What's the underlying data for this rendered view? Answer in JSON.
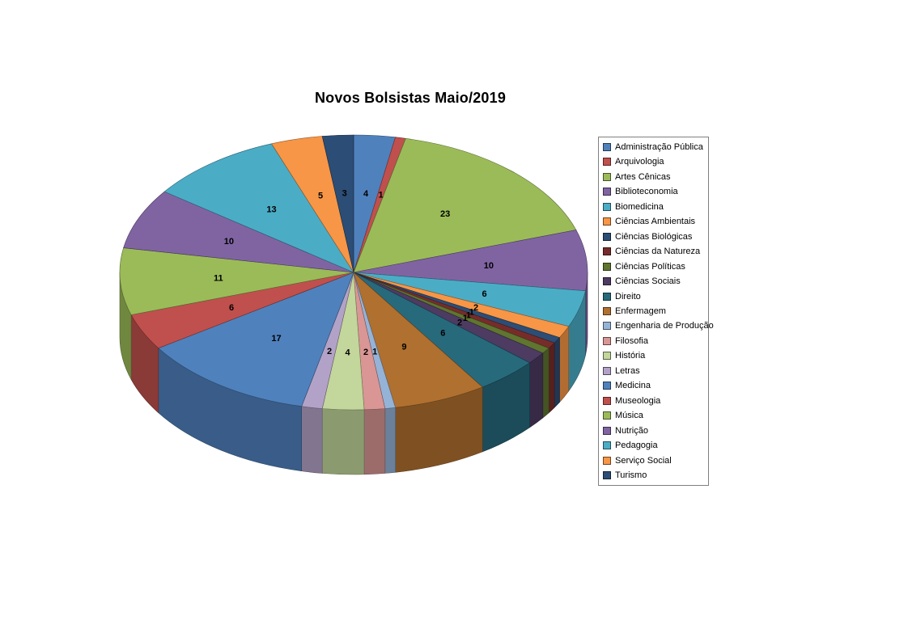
{
  "title": "Novos Bolsistas Maio/2019",
  "chart_data": {
    "type": "pie",
    "title": "Novos Bolsistas Maio/2019",
    "style": "3d",
    "start_angle_deg": 0,
    "direction": "clockwise",
    "legend_position": "right",
    "data_labels": "values",
    "total": 140,
    "series": [
      {
        "label": "Administração Pública",
        "value": 4,
        "color": "#4F81BD"
      },
      {
        "label": "Arquivologia",
        "value": 1,
        "color": "#C0504D"
      },
      {
        "label": "Artes Cênicas",
        "value": 23,
        "color": "#9BBB59"
      },
      {
        "label": "Biblioteconomia",
        "value": 10,
        "color": "#8064A2"
      },
      {
        "label": "Biomedicina",
        "value": 6,
        "color": "#4BACC6"
      },
      {
        "label": "Ciências Ambientais",
        "value": 2,
        "color": "#F79646"
      },
      {
        "label": "Ciências Biológicas",
        "value": 1,
        "color": "#2C4D75"
      },
      {
        "label": "Ciências da Natureza",
        "value": 1,
        "color": "#772C2A"
      },
      {
        "label": "Ciências Políticas",
        "value": 1,
        "color": "#5F7530"
      },
      {
        "label": "Ciências Sociais",
        "value": 2,
        "color": "#4D3B62"
      },
      {
        "label": "Direito",
        "value": 6,
        "color": "#276A7C"
      },
      {
        "label": "Enfermagem",
        "value": 9,
        "color": "#B0702F"
      },
      {
        "label": "Engenharia de Produção",
        "value": 1,
        "color": "#95B3D7"
      },
      {
        "label": "Filosofia",
        "value": 2,
        "color": "#D99694"
      },
      {
        "label": "História",
        "value": 4,
        "color": "#C3D69B"
      },
      {
        "label": "Letras",
        "value": 2,
        "color": "#B3A2C7"
      },
      {
        "label": "Medicina",
        "value": 17,
        "color": "#4F81BD"
      },
      {
        "label": "Museologia",
        "value": 6,
        "color": "#C0504D"
      },
      {
        "label": "Música",
        "value": 11,
        "color": "#9BBB59"
      },
      {
        "label": "Nutrição",
        "value": 10,
        "color": "#8064A2"
      },
      {
        "label": "Pedagogia",
        "value": 13,
        "color": "#4BACC6"
      },
      {
        "label": "Serviço Social",
        "value": 5,
        "color": "#F79646"
      },
      {
        "label": "Turismo",
        "value": 3,
        "color": "#2C4D75"
      }
    ]
  }
}
